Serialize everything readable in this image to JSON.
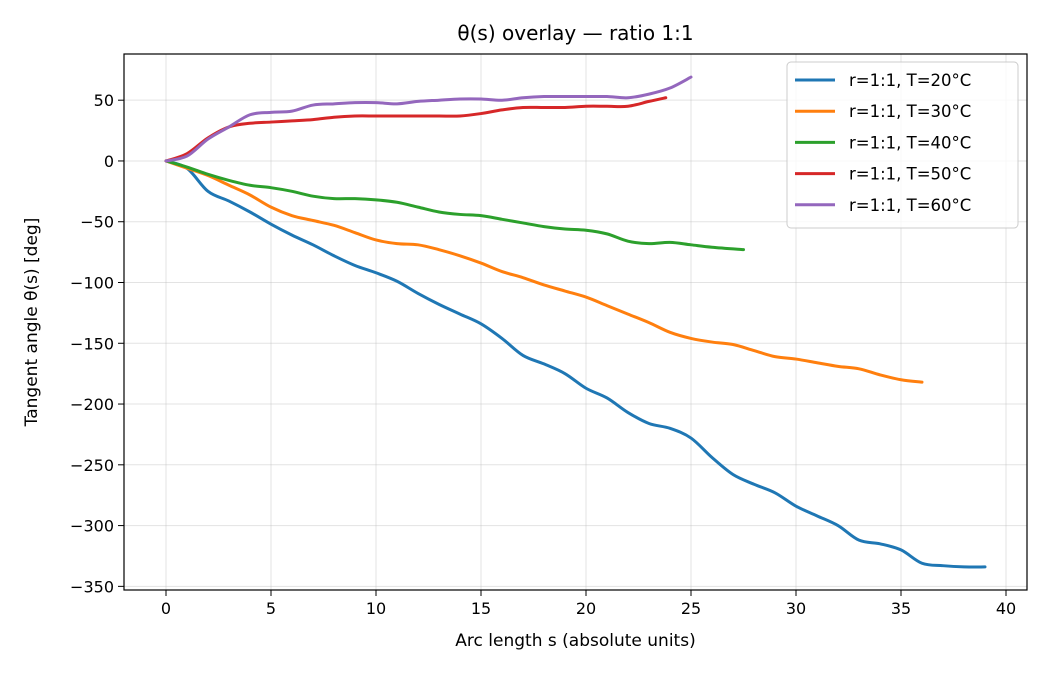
{
  "chart_data": {
    "type": "line",
    "title": "θ(s) overlay — ratio 1:1",
    "xlabel": "Arc length s (absolute units)",
    "ylabel": "Tangent angle θ(s) [deg]",
    "xlim": [
      -2,
      41
    ],
    "ylim": [
      -353,
      88
    ],
    "xticks": [
      0,
      5,
      10,
      15,
      20,
      25,
      30,
      35,
      40
    ],
    "xtick_labels": [
      "0",
      "5",
      "10",
      "15",
      "20",
      "25",
      "30",
      "35",
      "40"
    ],
    "yticks": [
      50,
      0,
      -50,
      -100,
      -150,
      -200,
      -250,
      -300,
      -350
    ],
    "ytick_labels": [
      "50",
      "0",
      "−50",
      "−100",
      "−150",
      "−200",
      "−250",
      "−300",
      "−350"
    ],
    "grid": true,
    "legend_position": "top-right",
    "series": [
      {
        "name": "r=1:1, T=20°C",
        "color": "#1f77b4",
        "x": [
          0,
          1,
          2,
          3,
          4,
          5,
          6,
          7,
          8,
          9,
          10,
          11,
          12,
          13,
          14,
          15,
          16,
          17,
          18,
          19,
          20,
          21,
          22,
          23,
          24,
          25,
          26,
          27,
          28,
          29,
          30,
          31,
          32,
          33,
          34,
          35,
          36,
          37,
          38,
          39
        ],
        "values": [
          0,
          -6,
          -25,
          -33,
          -42,
          -52,
          -61,
          -69,
          -78,
          -86,
          -92,
          -99,
          -109,
          -118,
          -126,
          -134,
          -146,
          -160,
          -167,
          -175,
          -187,
          -195,
          -207,
          -216,
          -220,
          -228,
          -244,
          -258,
          -266,
          -273,
          -284,
          -292,
          -300,
          -312,
          -315,
          -320,
          -331,
          -333,
          -334,
          -334
        ]
      },
      {
        "name": "r=1:1, T=30°C",
        "color": "#ff7f0e",
        "x": [
          0,
          1,
          2,
          3,
          4,
          5,
          6,
          7,
          8,
          9,
          10,
          11,
          12,
          13,
          14,
          15,
          16,
          17,
          18,
          19,
          20,
          21,
          22,
          23,
          24,
          25,
          26,
          27,
          28,
          29,
          30,
          31,
          32,
          33,
          34,
          35,
          36
        ],
        "values": [
          0,
          -6,
          -12,
          -20,
          -28,
          -38,
          -45,
          -49,
          -53,
          -59,
          -65,
          -68,
          -69,
          -73,
          -78,
          -84,
          -91,
          -96,
          -102,
          -107,
          -112,
          -119,
          -126,
          -133,
          -141,
          -146,
          -149,
          -151,
          -156,
          -161,
          -163,
          -166,
          -169,
          -171,
          -176,
          -180,
          -182
        ]
      },
      {
        "name": "r=1:1, T=40°C",
        "color": "#2ca02c",
        "x": [
          0,
          1,
          2,
          3,
          4,
          5,
          6,
          7,
          8,
          9,
          10,
          11,
          12,
          13,
          14,
          15,
          16,
          17,
          18,
          19,
          20,
          21,
          22,
          23,
          24,
          25,
          26,
          27.5
        ],
        "values": [
          0,
          -5,
          -11,
          -16,
          -20,
          -22,
          -25,
          -29,
          -31,
          -31,
          -32,
          -34,
          -38,
          -42,
          -44,
          -45,
          -48,
          -51,
          -54,
          -56,
          -57,
          -60,
          -66,
          -68,
          -67,
          -69,
          -71,
          -73
        ]
      },
      {
        "name": "r=1:1, T=50°C",
        "color": "#d62728",
        "x": [
          0,
          1,
          2,
          3,
          4,
          5,
          6,
          7,
          8,
          9,
          10,
          11,
          12,
          13,
          14,
          15,
          16,
          17,
          18,
          19,
          20,
          21,
          22,
          23,
          23.8
        ],
        "values": [
          0,
          6,
          19,
          28,
          31,
          32,
          33,
          34,
          36,
          37,
          37,
          37,
          37,
          37,
          37,
          39,
          42,
          44,
          44,
          44,
          45,
          45,
          45,
          49,
          52
        ]
      },
      {
        "name": "r=1:1, T=60°C",
        "color": "#9467bd",
        "x": [
          0,
          1,
          2,
          3,
          4,
          5,
          6,
          7,
          8,
          9,
          10,
          11,
          12,
          13,
          14,
          15,
          16,
          17,
          18,
          19,
          20,
          21,
          22,
          23,
          24,
          25
        ],
        "values": [
          0,
          4,
          18,
          28,
          38,
          40,
          41,
          46,
          47,
          48,
          48,
          47,
          49,
          50,
          51,
          51,
          50,
          52,
          53,
          53,
          53,
          53,
          52,
          55,
          60,
          69
        ]
      }
    ]
  }
}
